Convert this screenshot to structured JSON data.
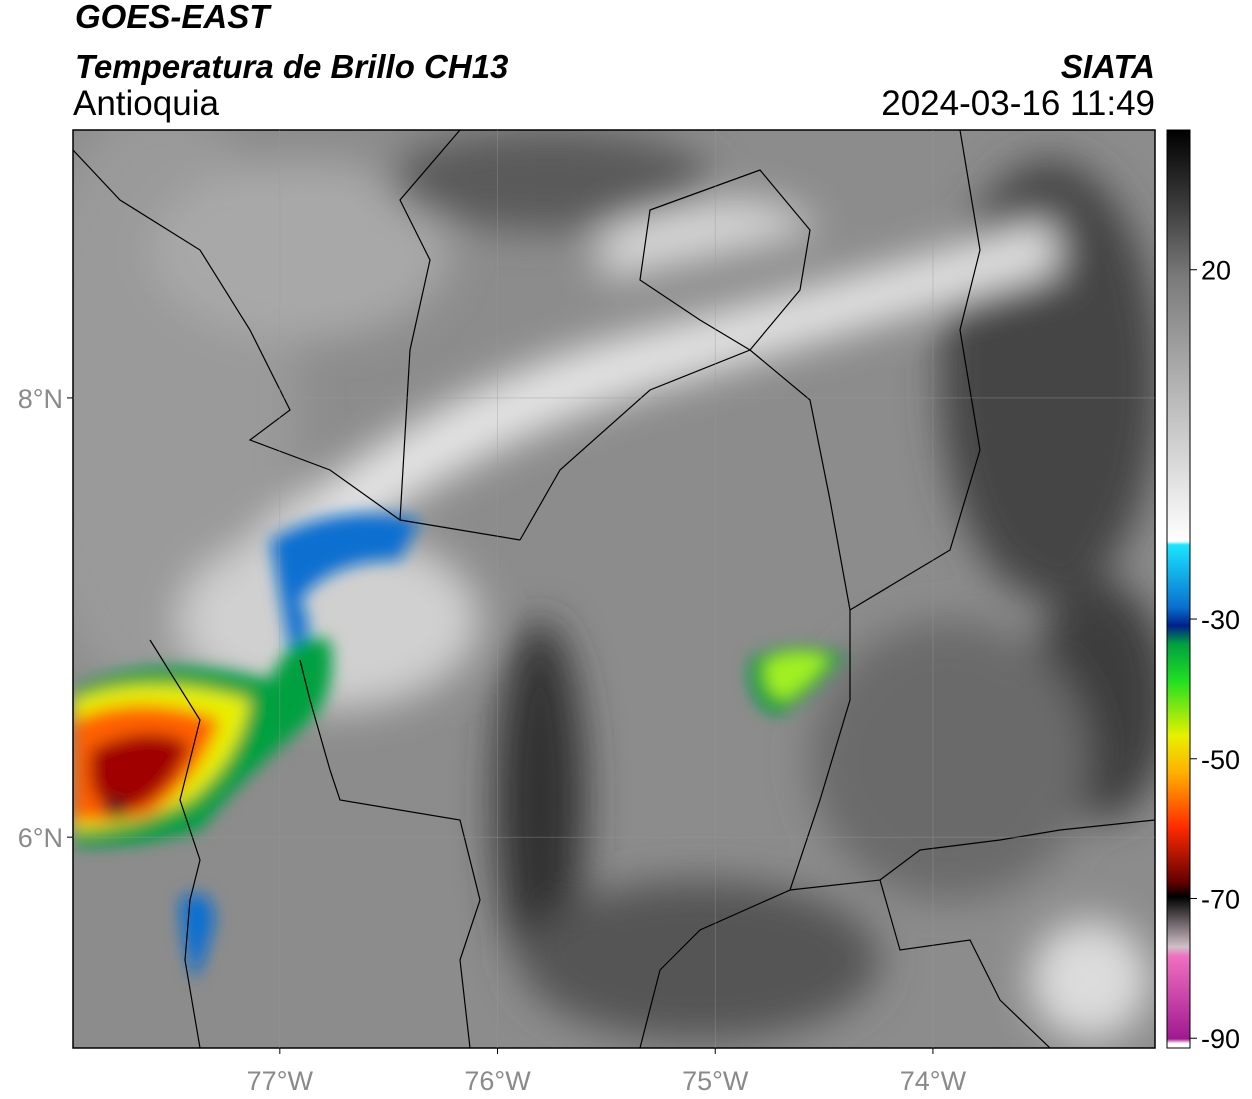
{
  "header": {
    "satellite": "GOES-EAST",
    "product": "Temperatura de Brillo CH13",
    "region": "Antioquia",
    "source": "SIATA",
    "datetime": "2024-03-16 11:49"
  },
  "map": {
    "xlim": [
      -77.95,
      -72.98
    ],
    "ylim": [
      5.04,
      9.22
    ],
    "xticks": [
      {
        "value": -77,
        "label": "77°W"
      },
      {
        "value": -76,
        "label": "76°W"
      },
      {
        "value": -75,
        "label": "75°W"
      },
      {
        "value": -74,
        "label": "74°W"
      }
    ],
    "yticks": [
      {
        "value": 8,
        "label": "8°N"
      },
      {
        "value": 6,
        "label": "6°N"
      }
    ]
  },
  "colorbar": {
    "lim": [
      -91.4,
      40
    ],
    "ticks": [
      20,
      -30,
      -50,
      -70,
      -90
    ]
  }
}
